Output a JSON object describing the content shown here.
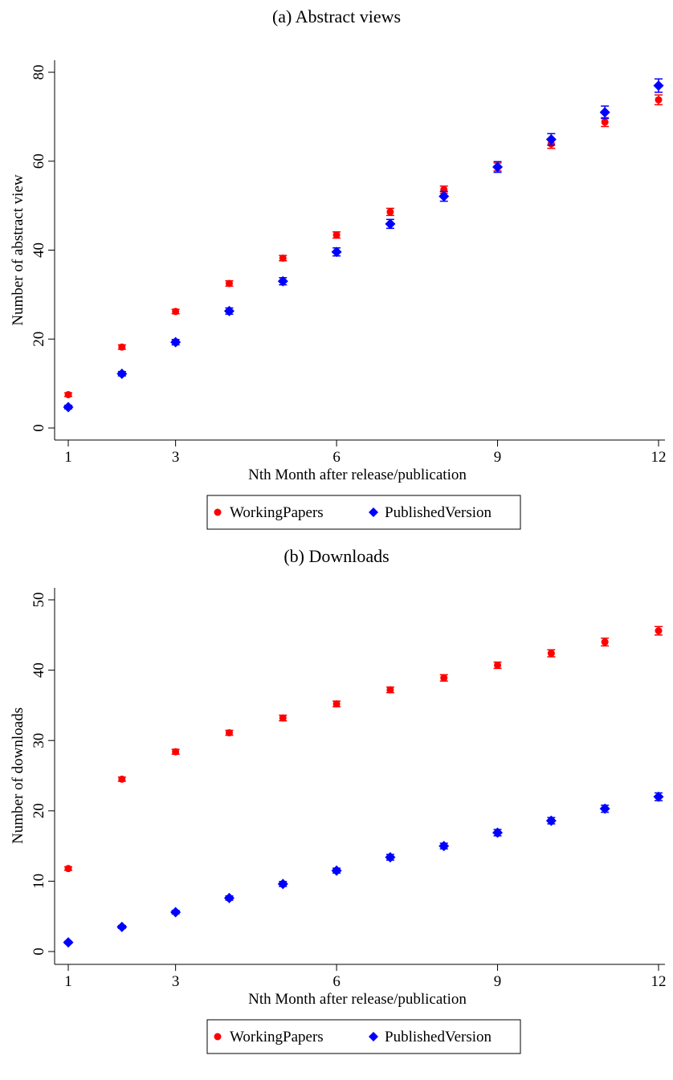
{
  "chart_data": [
    {
      "type": "scatter",
      "title": "(a) Abstract views",
      "xlabel": "Nth Month after release/publication",
      "ylabel": "Number of abstract view",
      "xlim": [
        1,
        12
      ],
      "ylim": [
        0,
        80
      ],
      "xticks": [
        1,
        3,
        6,
        9,
        12
      ],
      "yticks": [
        0,
        20,
        40,
        60,
        80
      ],
      "error_bars": true,
      "legend_position": "bottom",
      "series": [
        {
          "name": "WorkingPapers",
          "color": "#ff0000",
          "marker": "circle",
          "x": [
            1,
            2,
            3,
            4,
            5,
            6,
            7,
            8,
            9,
            10,
            11,
            12
          ],
          "y": [
            7.5,
            18.2,
            26.2,
            32.5,
            38.2,
            43.4,
            48.6,
            53.6,
            58.7,
            63.9,
            68.8,
            73.8
          ],
          "err": [
            0.4,
            0.5,
            0.5,
            0.6,
            0.6,
            0.7,
            0.8,
            0.8,
            0.9,
            1.0,
            1.0,
            1.1
          ]
        },
        {
          "name": "PublishedVersion",
          "color": "#0000ff",
          "marker": "diamond",
          "x": [
            1,
            2,
            3,
            4,
            5,
            6,
            7,
            8,
            9,
            10,
            11,
            12
          ],
          "y": [
            4.7,
            12.2,
            19.3,
            26.3,
            33.0,
            39.6,
            45.9,
            52.1,
            58.7,
            64.9,
            71.0,
            77.0
          ],
          "err": [
            0.4,
            0.5,
            0.6,
            0.7,
            0.8,
            0.9,
            1.0,
            1.1,
            1.2,
            1.3,
            1.4,
            1.5
          ]
        }
      ]
    },
    {
      "type": "scatter",
      "title": "(b) Downloads",
      "xlabel": "Nth Month after release/publication",
      "ylabel": "Number of downloads",
      "xlim": [
        1,
        12
      ],
      "ylim": [
        0,
        50
      ],
      "xticks": [
        1,
        3,
        6,
        9,
        12
      ],
      "yticks": [
        0,
        10,
        20,
        30,
        40,
        50
      ],
      "error_bars": true,
      "legend_position": "bottom",
      "series": [
        {
          "name": "WorkingPapers",
          "color": "#ff0000",
          "marker": "circle",
          "x": [
            1,
            2,
            3,
            4,
            5,
            6,
            7,
            8,
            9,
            10,
            11,
            12
          ],
          "y": [
            11.8,
            24.5,
            28.4,
            31.1,
            33.2,
            35.2,
            37.2,
            38.9,
            40.7,
            42.4,
            44.0,
            45.6
          ],
          "err": [
            0.25,
            0.3,
            0.35,
            0.35,
            0.4,
            0.4,
            0.4,
            0.45,
            0.45,
            0.5,
            0.55,
            0.6
          ]
        },
        {
          "name": "PublishedVersion",
          "color": "#0000ff",
          "marker": "diamond",
          "x": [
            1,
            2,
            3,
            4,
            5,
            6,
            7,
            8,
            9,
            10,
            11,
            12
          ],
          "y": [
            1.3,
            3.5,
            5.6,
            7.6,
            9.6,
            11.5,
            13.4,
            15.0,
            16.9,
            18.6,
            20.3,
            22.0
          ],
          "err": [
            0.15,
            0.2,
            0.25,
            0.3,
            0.35,
            0.35,
            0.4,
            0.4,
            0.45,
            0.45,
            0.5,
            0.55
          ]
        }
      ]
    }
  ]
}
